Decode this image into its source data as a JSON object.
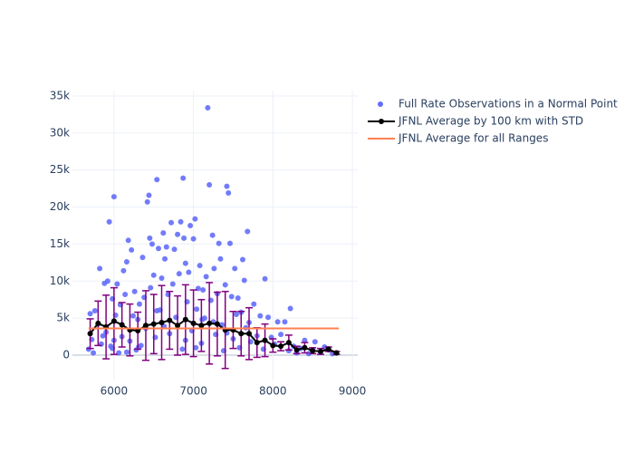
{
  "chart_data": {
    "type": "scatter",
    "legend": "right",
    "grid": true,
    "xlim": [
      5477,
      9068
    ],
    "ylim": [
      -3430,
      35730
    ],
    "xticks": [
      6000,
      7000,
      8000,
      9000
    ],
    "yticks": [
      0,
      {
        "value": 5000,
        "label": "5k"
      },
      {
        "value": 10000,
        "label": "10k"
      },
      {
        "value": 15000,
        "label": "15k"
      },
      {
        "value": 20000,
        "label": "20k"
      },
      {
        "value": 25000,
        "label": "25k"
      },
      {
        "value": 30000,
        "label": "30k"
      },
      {
        "value": 35000,
        "label": "35k"
      }
    ],
    "series": [
      {
        "name": "Full Rate Observations in a Normal Point",
        "type": "scatter",
        "color": "#636efa",
        "x": [
          5680,
          5700,
          5720,
          5740,
          5760,
          5800,
          5820,
          5840,
          5860,
          5880,
          5900,
          5920,
          5940,
          5960,
          5980,
          6000,
          6020,
          6040,
          6060,
          6080,
          6100,
          6120,
          6140,
          6160,
          6180,
          6200,
          6220,
          6240,
          6260,
          6280,
          6300,
          6320,
          6340,
          6360,
          6380,
          6400,
          6420,
          6440,
          6460,
          6480,
          6500,
          6520,
          6540,
          6560,
          6580,
          6600,
          6620,
          6640,
          6660,
          6680,
          6700,
          6720,
          6740,
          6760,
          6780,
          6800,
          6820,
          6840,
          6860,
          6880,
          6900,
          6920,
          6940,
          6960,
          6980,
          7000,
          7020,
          7040,
          7060,
          7080,
          7100,
          7120,
          7140,
          7160,
          7180,
          7200,
          7220,
          7240,
          7260,
          7280,
          7300,
          7320,
          7340,
          7360,
          7380,
          7400,
          7420,
          7440,
          7460,
          7480,
          7500,
          7520,
          7540,
          7560,
          7580,
          7600,
          7620,
          7640,
          7660,
          7680,
          7700,
          7720,
          7760,
          7800,
          7840,
          7880,
          7900,
          7940,
          7980,
          8020,
          8060,
          8100,
          8150,
          8200,
          8220,
          8260,
          8300,
          8350,
          8400,
          8450,
          8500,
          8530,
          8600,
          8650,
          8700,
          8750,
          8800,
          6540,
          6870,
          6000,
          6450,
          7030,
          7420,
          6160,
          6900,
          7250,
          5980,
          6630,
          7110,
          6310
        ],
        "values": [
          800,
          5600,
          2100,
          300,
          6000,
          4200,
          11700,
          1500,
          2600,
          9700,
          3100,
          10000,
          18000,
          1200,
          7600,
          21400,
          5400,
          9600,
          300,
          6800,
          2500,
          11400,
          8200,
          12600,
          15500,
          1900,
          14200,
          5300,
          8600,
          700,
          4800,
          6900,
          1300,
          13200,
          7800,
          3600,
          20700,
          21600,
          9100,
          15000,
          10800,
          2400,
          23700,
          14400,
          6100,
          10400,
          16500,
          13000,
          14600,
          8200,
          2900,
          17900,
          9600,
          14300,
          5100,
          16300,
          11000,
          18000,
          800,
          15800,
          12400,
          7200,
          11200,
          17500,
          3300,
          15700,
          18400,
          6200,
          9000,
          12100,
          1600,
          8800,
          5000,
          10600,
          33400,
          23000,
          7400,
          16200,
          11700,
          2800,
          8300,
          15100,
          13000,
          4100,
          600,
          9500,
          22800,
          21900,
          15100,
          7900,
          2200,
          11700,
          5500,
          7700,
          1000,
          5800,
          12900,
          10100,
          3700,
          16700,
          4400,
          1800,
          6900,
          2600,
          5300,
          800,
          10300,
          5100,
          2400,
          1500,
          4500,
          2800,
          4500,
          600,
          6300,
          1200,
          300,
          900,
          2000,
          200,
          700,
          1800,
          400,
          1100,
          700,
          200,
          300,
          6000,
          23900,
          2000,
          15800,
          1000,
          3000,
          400,
          2000,
          4500,
          900,
          3900,
          4800,
          1100
        ]
      },
      {
        "name": "JFNL Average by 100 km with STD",
        "type": "line",
        "color": "#000000",
        "error_color": "#800080",
        "x": [
          5700,
          5800,
          5900,
          6000,
          6100,
          6200,
          6300,
          6400,
          6500,
          6600,
          6700,
          6800,
          6900,
          7000,
          7100,
          7200,
          7300,
          7400,
          7500,
          7600,
          7700,
          7800,
          7900,
          8000,
          8100,
          8200,
          8300,
          8400,
          8500,
          8600,
          8700,
          8800
        ],
        "values": [
          2900,
          4300,
          3800,
          4600,
          4100,
          3400,
          3300,
          4000,
          4200,
          4400,
          4700,
          4000,
          4800,
          4300,
          4000,
          4300,
          4200,
          3400,
          3400,
          2900,
          2900,
          1700,
          2000,
          1300,
          1200,
          1700,
          700,
          1000,
          600,
          500,
          800,
          300
        ],
        "errors": [
          2000,
          3000,
          4300,
          4500,
          3000,
          3500,
          2500,
          4700,
          4000,
          5000,
          3900,
          4000,
          4700,
          4500,
          3500,
          5500,
          4300,
          5200,
          2500,
          3000,
          3500,
          2000,
          2200,
          900,
          600,
          1000,
          500,
          700,
          400,
          400,
          300,
          200
        ]
      },
      {
        "name": "JFNL Average for all Ranges",
        "type": "line",
        "color": "#ff7f50",
        "x": [
          5680,
          8830
        ],
        "values": [
          3600,
          3600
        ]
      }
    ]
  }
}
